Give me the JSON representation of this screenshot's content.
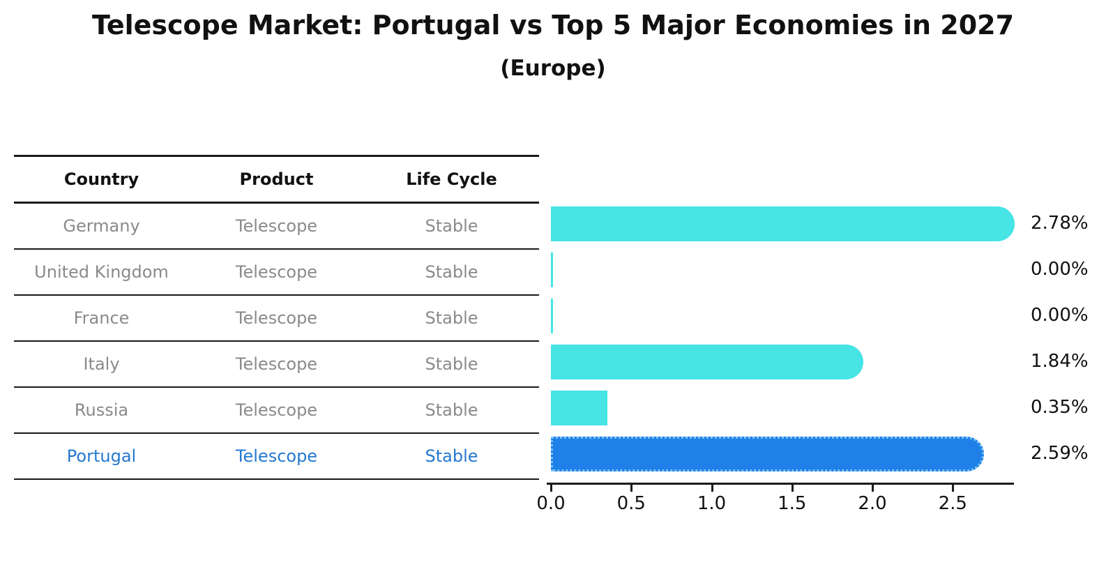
{
  "title": "Telescope Market: Portugal vs Top 5 Major Economies in 2027",
  "subtitle": "(Europe)",
  "table": {
    "headers": [
      "Country",
      "Product",
      "Life Cycle"
    ],
    "rows": [
      {
        "country": "Germany",
        "product": "Telescope",
        "life_cycle": "Stable"
      },
      {
        "country": "United Kingdom",
        "product": "Telescope",
        "life_cycle": "Stable"
      },
      {
        "country": "France",
        "product": "Telescope",
        "life_cycle": "Stable"
      },
      {
        "country": "Italy",
        "product": "Telescope",
        "life_cycle": "Stable"
      },
      {
        "country": "Russia",
        "product": "Telescope",
        "life_cycle": "Stable"
      },
      {
        "country": "Portugal",
        "product": "Telescope",
        "life_cycle": "Stable"
      }
    ]
  },
  "chart_data": {
    "type": "bar",
    "orientation": "horizontal",
    "title": "Telescope Market: Portugal vs Top 5 Major Economies in 2027",
    "subtitle": "(Europe)",
    "categories": [
      "Germany",
      "United Kingdom",
      "France",
      "Italy",
      "Russia",
      "Portugal"
    ],
    "values": [
      2.78,
      0.0,
      0.0,
      1.84,
      0.35,
      2.59
    ],
    "value_labels": [
      "2.78%",
      "0.00%",
      "0.00%",
      "1.84%",
      "0.35%",
      "2.59%"
    ],
    "highlighted_category": "Portugal",
    "highlighted_index": 5,
    "xlabel": "",
    "ylabel": "",
    "xlim": [
      0.0,
      2.9
    ],
    "x_ticks": [
      0.0,
      0.5,
      1.0,
      1.5,
      2.0,
      2.5
    ],
    "x_tick_labels": [
      "0.0",
      "0.5",
      "1.0",
      "1.5",
      "2.0",
      "2.5"
    ],
    "grid": false,
    "legend": false,
    "colors": {
      "bar_default": "#46e4e4",
      "bar_highlight": "#1e80e8",
      "bar_highlight_border": "#7cc0f2",
      "highlight_text": "#2478cf",
      "cell_text": "#8a8a8a",
      "heading_text": "#111111"
    }
  }
}
